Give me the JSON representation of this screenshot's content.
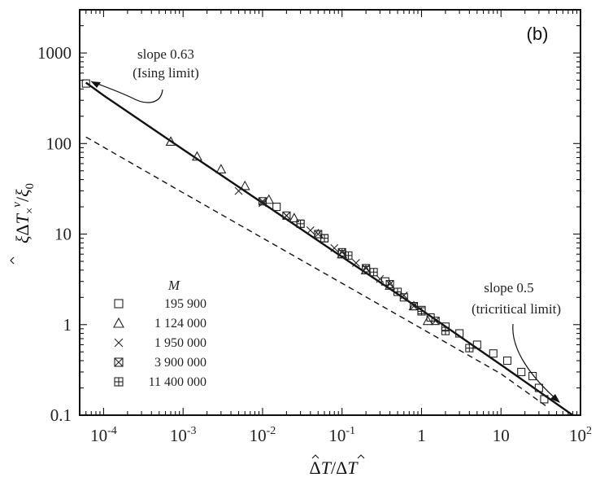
{
  "chart_data": {
    "type": "scatter",
    "panel_label": "(b)",
    "xlabel": "ΔT̂/ΔT̂×",
    "xlabel_parts": {
      "delta": "Δ",
      "t": "T",
      "slash": "/",
      "sub": "×"
    },
    "ylabel": "ξΔT̂×^ν/ξ0",
    "ylabel_parts": {
      "xi": "ξ",
      "delta": "Δ",
      "t": "T",
      "nu": "ν",
      "slash": "/",
      "xi0": "ξ",
      "sub0": "0",
      "subx": "×"
    },
    "x_scale": "log",
    "y_scale": "log",
    "xlim": [
      5e-05,
      100
    ],
    "ylim": [
      0.1,
      3000
    ],
    "x_ticks": [
      {
        "value": 0.0001,
        "base": "10",
        "exp": "-4"
      },
      {
        "value": 0.001,
        "base": "10",
        "exp": "-3"
      },
      {
        "value": 0.01,
        "base": "10",
        "exp": "-2"
      },
      {
        "value": 0.1,
        "base": "10",
        "exp": "-1"
      },
      {
        "value": 1,
        "base": "1",
        "exp": ""
      },
      {
        "value": 10,
        "base": "10",
        "exp": ""
      },
      {
        "value": 100,
        "base": "10",
        "exp": "2"
      }
    ],
    "y_ticks": [
      {
        "value": 0.1,
        "label": "0.1"
      },
      {
        "value": 1,
        "label": "1"
      },
      {
        "value": 10,
        "label": "10"
      },
      {
        "value": 100,
        "label": "100"
      },
      {
        "value": 1000,
        "label": "1000"
      }
    ],
    "lines": [
      {
        "name": "Fit (Ising to tricritical crossover)",
        "style": "solid",
        "x": [
          6e-05,
          0.0001,
          0.001,
          0.01,
          0.1,
          1,
          10,
          80
        ],
        "y": [
          470,
          340,
          86,
          22,
          5.6,
          1.45,
          0.36,
          0.1
        ]
      },
      {
        "name": "Tricritical asymptote",
        "style": "dashed",
        "x": [
          6e-05,
          0.001,
          0.01,
          0.1,
          1,
          10,
          40
        ],
        "y": [
          118,
          28.6,
          9.04,
          2.86,
          0.904,
          0.286,
          0.12
        ]
      }
    ],
    "annotations": [
      {
        "text_line1": "slope 0.63",
        "text_line2": "(Ising limit)"
      },
      {
        "text_line1": "slope 0.5",
        "text_line2": "(tricritical limit)"
      }
    ],
    "legend": {
      "title": "M",
      "placement": "bottom-left",
      "entries": [
        {
          "label": "195 900",
          "marker": "square"
        },
        {
          "label": "1 124 000",
          "marker": "triangle"
        },
        {
          "label": "1 950 000",
          "marker": "cross"
        },
        {
          "label": "3 900 000",
          "marker": "boxed-x"
        },
        {
          "label": "11 400 000",
          "marker": "boxed-plus"
        }
      ]
    },
    "series": [
      {
        "name": "195 900",
        "marker": "square",
        "x": [
          6e-05,
          0.015,
          0.03,
          0.06,
          0.1,
          0.2,
          0.35,
          0.6,
          1.0,
          1.3,
          2.0,
          3.0,
          5.0,
          8.0,
          12,
          18,
          25,
          30,
          35
        ],
        "y": [
          460,
          20,
          13,
          9.0,
          6.0,
          4.0,
          3.0,
          2.0,
          1.45,
          1.2,
          0.95,
          0.8,
          0.6,
          0.48,
          0.4,
          0.3,
          0.27,
          0.2,
          0.15
        ]
      },
      {
        "name": "1 124 000",
        "marker": "triangle",
        "x": [
          0.0007,
          0.0015,
          0.003,
          0.006,
          0.012,
          0.025,
          0.05,
          0.1,
          0.2,
          0.4,
          0.8,
          1.2
        ],
        "y": [
          105,
          72,
          52,
          34,
          24,
          15,
          10,
          6.0,
          4.0,
          2.7,
          1.6,
          1.1
        ]
      },
      {
        "name": "1 950 000",
        "marker": "cross",
        "x": [
          0.005,
          0.01,
          0.02,
          0.04,
          0.08,
          0.15,
          0.3,
          0.6
        ],
        "y": [
          30,
          22,
          16,
          11,
          7.0,
          4.8,
          3.2,
          2.1
        ]
      },
      {
        "name": "3 900 000",
        "marker": "boxed-x",
        "x": [
          0.01,
          0.02,
          0.05,
          0.1,
          0.2,
          0.4,
          0.8,
          1.5
        ],
        "y": [
          23,
          16,
          10,
          6.3,
          4.2,
          2.8,
          1.6,
          1.1
        ]
      },
      {
        "name": "11 400 000",
        "marker": "boxed-plus",
        "x": [
          0.03,
          0.06,
          0.12,
          0.25,
          0.5,
          1.0,
          2.0,
          4.0
        ],
        "y": [
          13,
          9.0,
          5.8,
          3.8,
          2.3,
          1.4,
          0.85,
          0.55
        ]
      }
    ]
  }
}
